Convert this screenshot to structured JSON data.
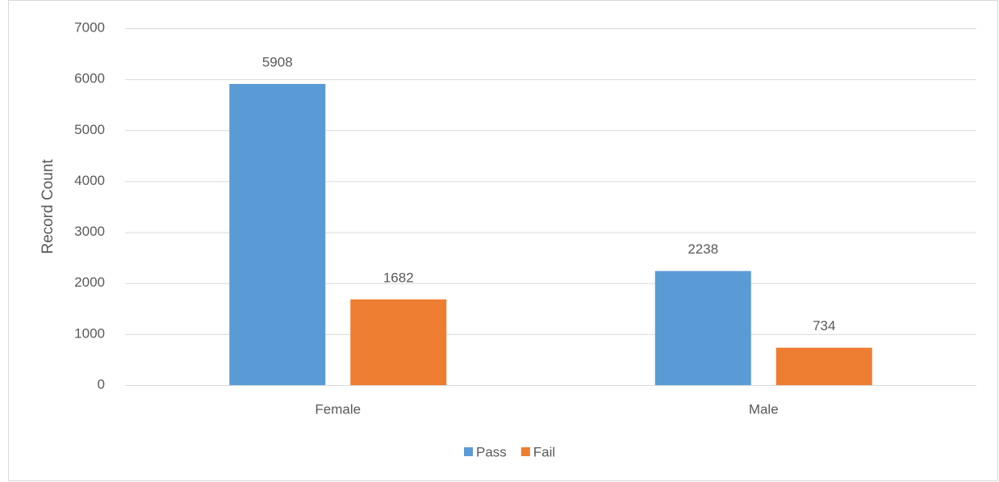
{
  "chart_data": {
    "type": "bar",
    "y_label": "Record Count",
    "categories": [
      "Female",
      "Male"
    ],
    "series": [
      {
        "name": "Pass",
        "color": "#5b9bd5",
        "values": [
          5908,
          2238
        ]
      },
      {
        "name": "Fail",
        "color": "#ed7d31",
        "values": [
          1682,
          734
        ]
      }
    ],
    "ylim": [
      0,
      7000
    ],
    "yticks": [
      0,
      1000,
      2000,
      3000,
      4000,
      5000,
      6000,
      7000
    ],
    "grid": true,
    "legend": "bottom"
  }
}
